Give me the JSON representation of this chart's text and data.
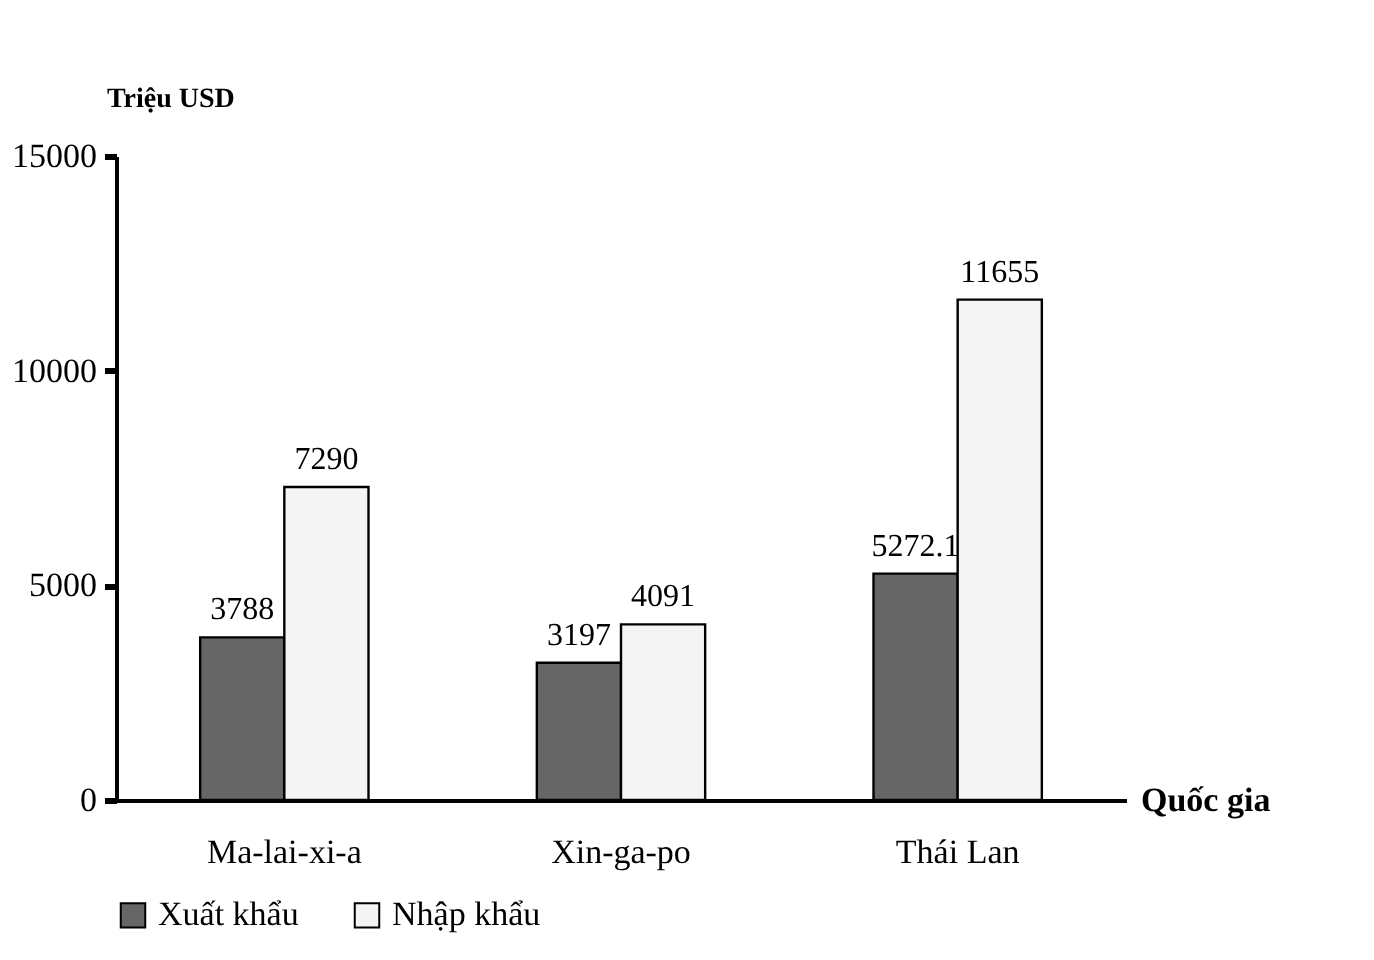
{
  "chart_data": {
    "type": "bar",
    "xlabel": "Quốc gia",
    "ylabel": "Triệu USD",
    "categories": [
      "Ma-lai-xi-a",
      "Xin-ga-po",
      "Thái Lan"
    ],
    "series": [
      {
        "name": "Xuất khẩu",
        "color": "#666666",
        "values": [
          3788,
          3197,
          5272.1
        ]
      },
      {
        "name": "Nhập khẩu",
        "color": "#f4f4f4",
        "values": [
          7290,
          4091,
          11655
        ]
      }
    ],
    "ylim": [
      0,
      15000
    ],
    "yticks": [
      0,
      5000,
      10000,
      15000
    ],
    "data_labels": true,
    "grid": false,
    "legend": "bottom"
  }
}
